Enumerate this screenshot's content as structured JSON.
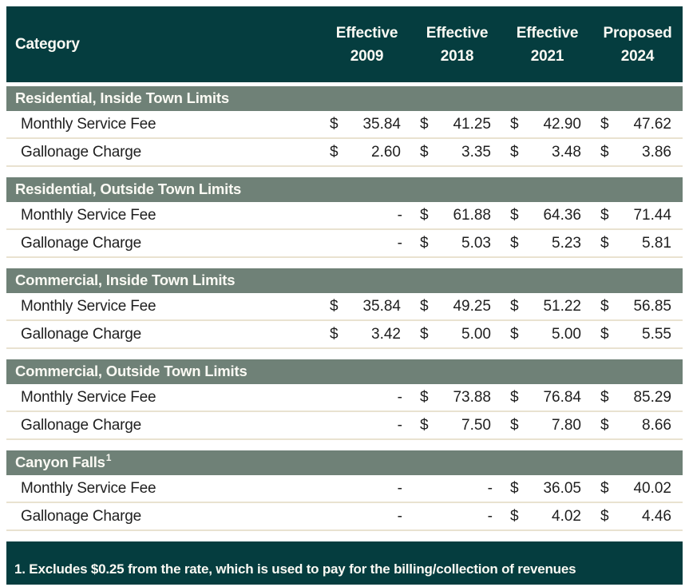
{
  "colors": {
    "header_bg": "#053D3F",
    "section_header_bg": "#6F8177",
    "row_divider": "#E9E2D0",
    "body_text": "#1F1F1F",
    "header_text": "#FBFAF4",
    "page_bg": "#FFFFFF"
  },
  "header": {
    "category_label": "Category",
    "columns": [
      {
        "label": "Effective",
        "year": "2009"
      },
      {
        "label": "Effective",
        "year": "2018"
      },
      {
        "label": "Effective",
        "year": "2021"
      },
      {
        "label": "Proposed",
        "year": "2024"
      }
    ]
  },
  "currency_symbol": "$",
  "empty_value_placeholder": "-",
  "sections": [
    {
      "title": "Residential, Inside Town Limits",
      "footnote_ref": "",
      "rows": [
        {
          "label": "Monthly Service Fee",
          "values": [
            "35.84",
            "41.25",
            "42.90",
            "47.62"
          ]
        },
        {
          "label": "Gallonage Charge",
          "values": [
            "2.60",
            "3.35",
            "3.48",
            "3.86"
          ]
        }
      ]
    },
    {
      "title": "Residential, Outside Town Limits",
      "footnote_ref": "",
      "rows": [
        {
          "label": "Monthly Service Fee",
          "values": [
            null,
            "61.88",
            "64.36",
            "71.44"
          ]
        },
        {
          "label": "Gallonage Charge",
          "values": [
            null,
            "5.03",
            "5.23",
            "5.81"
          ]
        }
      ]
    },
    {
      "title": "Commercial, Inside Town Limits",
      "footnote_ref": "",
      "rows": [
        {
          "label": "Monthly Service Fee",
          "values": [
            "35.84",
            "49.25",
            "51.22",
            "56.85"
          ]
        },
        {
          "label": "Gallonage Charge",
          "values": [
            "3.42",
            "5.00",
            "5.00",
            "5.55"
          ]
        }
      ]
    },
    {
      "title": "Commercial, Outside Town Limits",
      "footnote_ref": "",
      "rows": [
        {
          "label": "Monthly Service Fee",
          "values": [
            null,
            "73.88",
            "76.84",
            "85.29"
          ]
        },
        {
          "label": "Gallonage Charge",
          "values": [
            null,
            "7.50",
            "7.80",
            "8.66"
          ]
        }
      ]
    },
    {
      "title": "Canyon Falls",
      "footnote_ref": "1",
      "rows": [
        {
          "label": "Monthly Service Fee",
          "values": [
            null,
            null,
            "36.05",
            "40.02"
          ]
        },
        {
          "label": "Gallonage Charge",
          "values": [
            null,
            null,
            "4.02",
            "4.46"
          ]
        }
      ]
    }
  ],
  "footnote": "1. Excludes $0.25 from the rate, which is used to pay for the billing/collection of revenues"
}
